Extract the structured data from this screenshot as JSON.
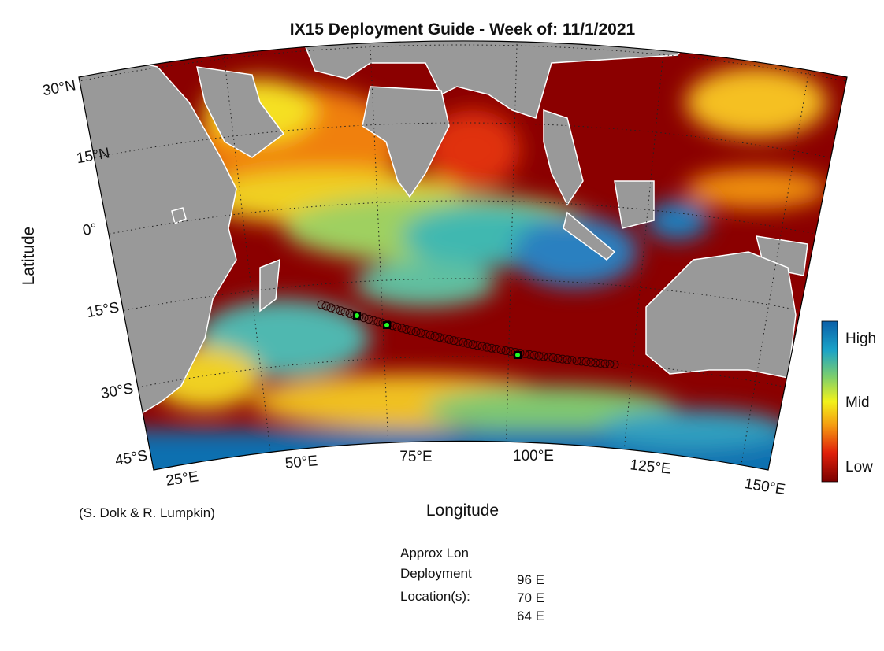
{
  "title": "IX15 Deployment Guide - Week of: 11/1/2021",
  "y_axis_label": "Latitude",
  "x_axis_label": "Longitude",
  "lat_labels": [
    "30°N",
    "15°N",
    "0°",
    "15°S",
    "30°S",
    "45°S"
  ],
  "lon_labels": [
    "25°E",
    "50°E",
    "75°E",
    "100°E",
    "125°E",
    "150°E"
  ],
  "colorbar_labels": [
    "High",
    "Mid",
    "Low"
  ],
  "credit": "(S. Dolk & R. Lumpkin)",
  "deployment_caption": [
    "Approx Lon",
    "Deployment",
    "Location(s):"
  ],
  "deployment_locations": [
    "96 E",
    "70 E",
    "64 E"
  ]
}
